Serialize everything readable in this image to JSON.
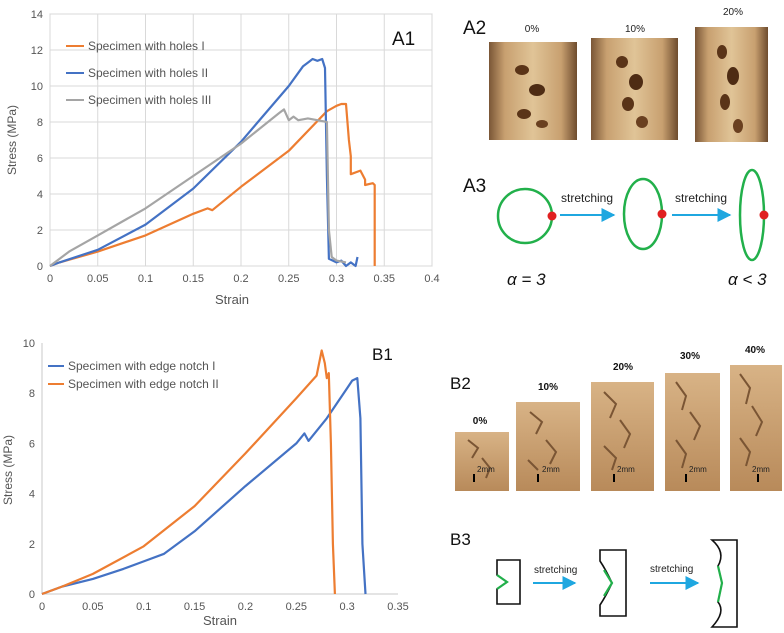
{
  "chart_data": [
    {
      "type": "line",
      "panel": "A1",
      "xlabel": "Strain",
      "ylabel": "Stress (MPa)",
      "xlim": [
        0,
        0.4
      ],
      "ylim": [
        0,
        14
      ],
      "xticks": [
        "0",
        "0.05",
        "0.1",
        "0.15",
        "0.2",
        "0.25",
        "0.3",
        "0.35",
        "0.4"
      ],
      "yticks": [
        "0",
        "2",
        "4",
        "6",
        "8",
        "10",
        "12",
        "14"
      ],
      "grid": true,
      "legend_position": "top-left",
      "series": [
        {
          "name": "Specimen with holes I",
          "color": "#ed7d31",
          "x": [
            0,
            0.01,
            0.05,
            0.1,
            0.15,
            0.165,
            0.17,
            0.2,
            0.25,
            0.29,
            0.3,
            0.305,
            0.31,
            0.313,
            0.315,
            0.315,
            0.325,
            0.33,
            0.33,
            0.338,
            0.34,
            0.34
          ],
          "y": [
            0,
            0.2,
            0.8,
            1.7,
            2.9,
            3.2,
            3.1,
            4.4,
            6.4,
            8.6,
            8.9,
            9.0,
            9.0,
            7.0,
            6.1,
            5.1,
            5.3,
            4.8,
            4.5,
            4.6,
            4.5,
            0
          ]
        },
        {
          "name": "Specimen with holes II",
          "color": "#4472c4",
          "x": [
            0,
            0.01,
            0.05,
            0.1,
            0.15,
            0.2,
            0.25,
            0.265,
            0.27,
            0.275,
            0.28,
            0.285,
            0.288,
            0.29,
            0.292,
            0.3,
            0.305,
            0.31,
            0.315,
            0.32,
            0.322
          ],
          "y": [
            0,
            0.2,
            0.9,
            2.3,
            4.3,
            6.9,
            10.0,
            11.1,
            11.3,
            11.5,
            11.4,
            11.5,
            11.0,
            5.0,
            0.4,
            0.2,
            0.3,
            0.0,
            0.2,
            0.0,
            0.5
          ]
        },
        {
          "name": "Specimen with holes III",
          "color": "#a5a5a5",
          "x": [
            0,
            0.02,
            0.05,
            0.1,
            0.15,
            0.2,
            0.24,
            0.245,
            0.25,
            0.255,
            0.26,
            0.27,
            0.28,
            0.29,
            0.292,
            0.295,
            0.3,
            0.31
          ],
          "y": [
            0,
            0.8,
            1.7,
            3.2,
            5.0,
            6.8,
            8.5,
            8.7,
            8.1,
            8.3,
            8.1,
            8.2,
            8.1,
            8.0,
            2.0,
            0.5,
            0.3,
            0.2
          ]
        }
      ]
    },
    {
      "type": "line",
      "panel": "B1",
      "xlabel": "Strain",
      "ylabel": "Stress (MPa)",
      "xlim": [
        0,
        0.35
      ],
      "ylim": [
        0,
        10
      ],
      "xticks": [
        "0",
        "0.05",
        "0.1",
        "0.15",
        "0.2",
        "0.25",
        "0.3",
        "0.35"
      ],
      "yticks": [
        "0",
        "2",
        "4",
        "6",
        "8",
        "10"
      ],
      "grid": false,
      "legend_position": "top-left",
      "series": [
        {
          "name": "Specimen with edge notch I",
          "color": "#4472c4",
          "x": [
            0,
            0.02,
            0.05,
            0.08,
            0.1,
            0.12,
            0.15,
            0.2,
            0.25,
            0.258,
            0.262,
            0.28,
            0.3,
            0.305,
            0.31,
            0.313,
            0.315,
            0.318
          ],
          "y": [
            0,
            0.3,
            0.6,
            1.0,
            1.3,
            1.6,
            2.5,
            4.3,
            6.0,
            6.4,
            6.1,
            7.0,
            8.2,
            8.5,
            8.6,
            7.0,
            2.0,
            0.0
          ]
        },
        {
          "name": "Specimen with edge notch II",
          "color": "#ed7d31",
          "x": [
            0,
            0.02,
            0.05,
            0.1,
            0.15,
            0.2,
            0.25,
            0.27,
            0.275,
            0.278,
            0.28,
            0.282,
            0.284,
            0.286,
            0.288
          ],
          "y": [
            0,
            0.3,
            0.8,
            1.9,
            3.5,
            5.6,
            7.8,
            8.7,
            9.7,
            9.2,
            8.6,
            8.8,
            6.0,
            2.0,
            0.0
          ]
        }
      ]
    }
  ],
  "panels": {
    "a1": "A1",
    "a2": "A2",
    "a3": "A3",
    "b1": "B1",
    "b2": "B2",
    "b3": "B3"
  },
  "a2": {
    "labels": [
      "0%",
      "10%",
      "20%"
    ]
  },
  "a3": {
    "arrow_label_1": "stretching",
    "arrow_label_2": "stretching",
    "alpha_left": "α = 3",
    "alpha_right": "α < 3"
  },
  "b2": {
    "labels": [
      "0%",
      "10%",
      "20%",
      "30%",
      "40%"
    ],
    "scale_bar": "2mm"
  },
  "b3": {
    "arrow_label_1": "stretching",
    "arrow_label_2": "stretching"
  },
  "colors": {
    "orange": "#ed7d31",
    "blue": "#4472c4",
    "gray": "#a5a5a5",
    "green": "#22b04b",
    "red": "#e02020",
    "cyan": "#1fa7e0"
  }
}
